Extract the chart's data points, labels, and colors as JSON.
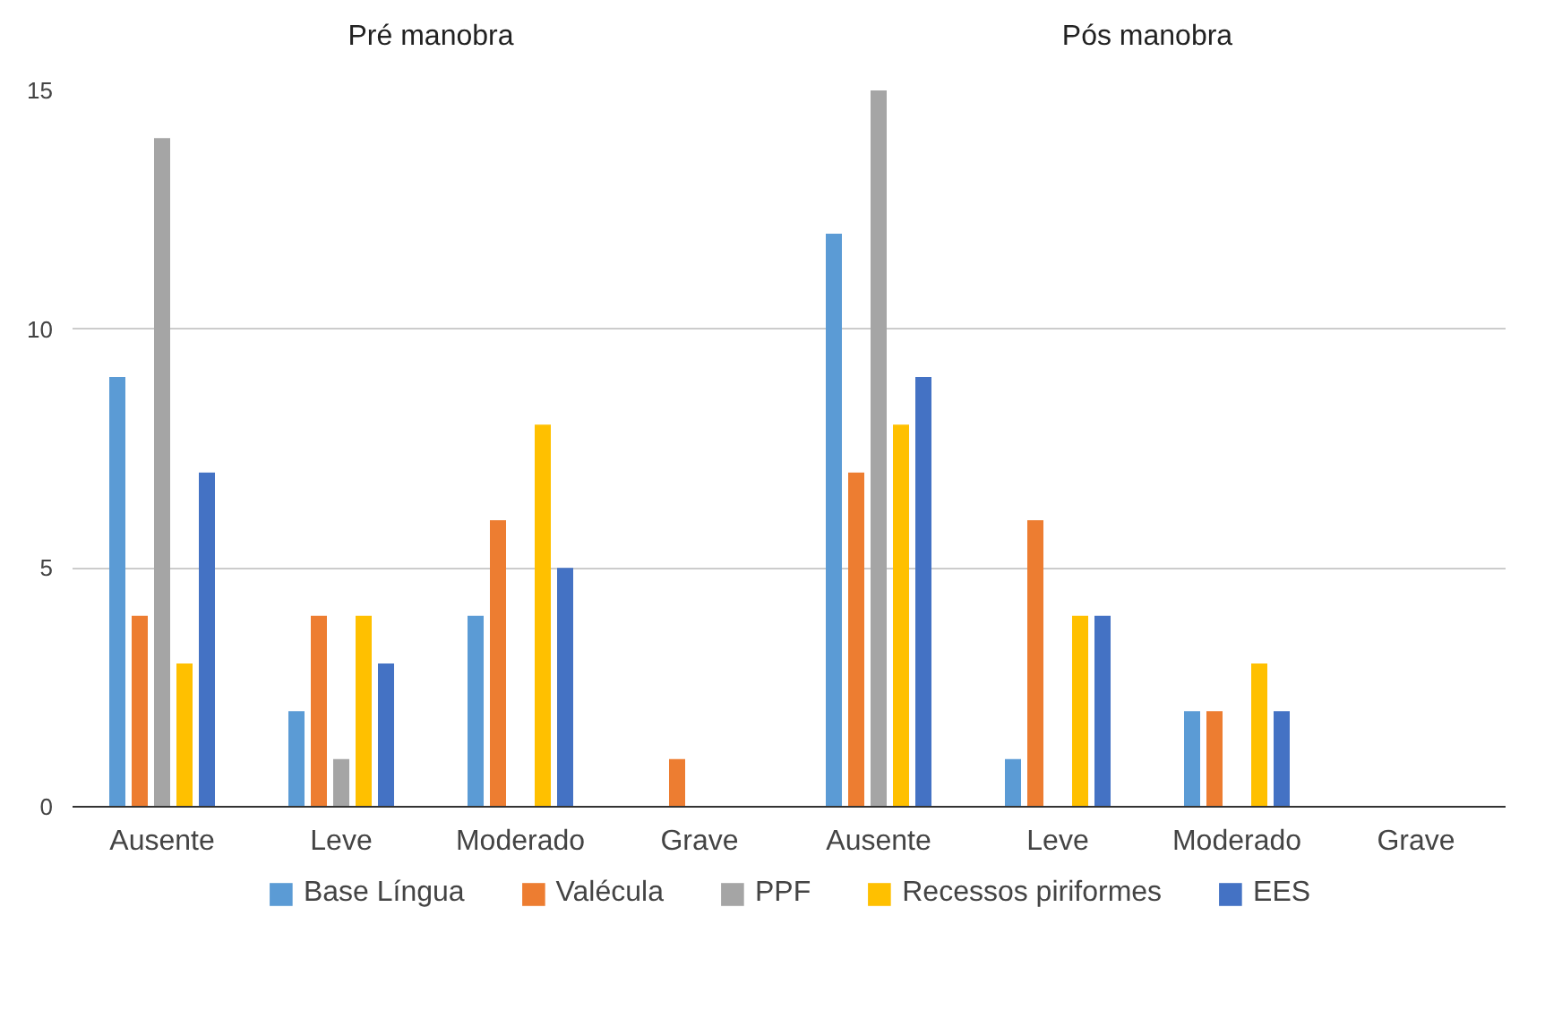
{
  "chart_data": {
    "type": "bar",
    "categories": [
      "Ausente",
      "Leve",
      "Moderado",
      "Grave",
      "Ausente",
      "Leve",
      "Moderado",
      "Grave"
    ],
    "annotations": [
      "Pré manobra",
      "Pós manobra"
    ],
    "series": [
      {
        "name": "Base Língua",
        "color": "#5b9bd5",
        "values": [
          9,
          2,
          4,
          0,
          12,
          1,
          2,
          0
        ]
      },
      {
        "name": "Valécula",
        "color": "#ed7d31",
        "values": [
          4,
          4,
          6,
          1,
          7,
          6,
          2,
          0
        ]
      },
      {
        "name": "PPF",
        "color": "#a5a5a5",
        "values": [
          14,
          1,
          0,
          0,
          15,
          0,
          0,
          0
        ]
      },
      {
        "name": "Recessos piriformes",
        "color": "#ffc000",
        "values": [
          3,
          4,
          8,
          0,
          8,
          4,
          3,
          0
        ]
      },
      {
        "name": "EES",
        "color": "#4472c4",
        "values": [
          7,
          3,
          5,
          0,
          9,
          4,
          2,
          0
        ]
      }
    ],
    "ylim": [
      0,
      15
    ],
    "yticks": [
      0,
      5,
      10,
      15
    ],
    "grid": "y",
    "legend": "bottom"
  }
}
